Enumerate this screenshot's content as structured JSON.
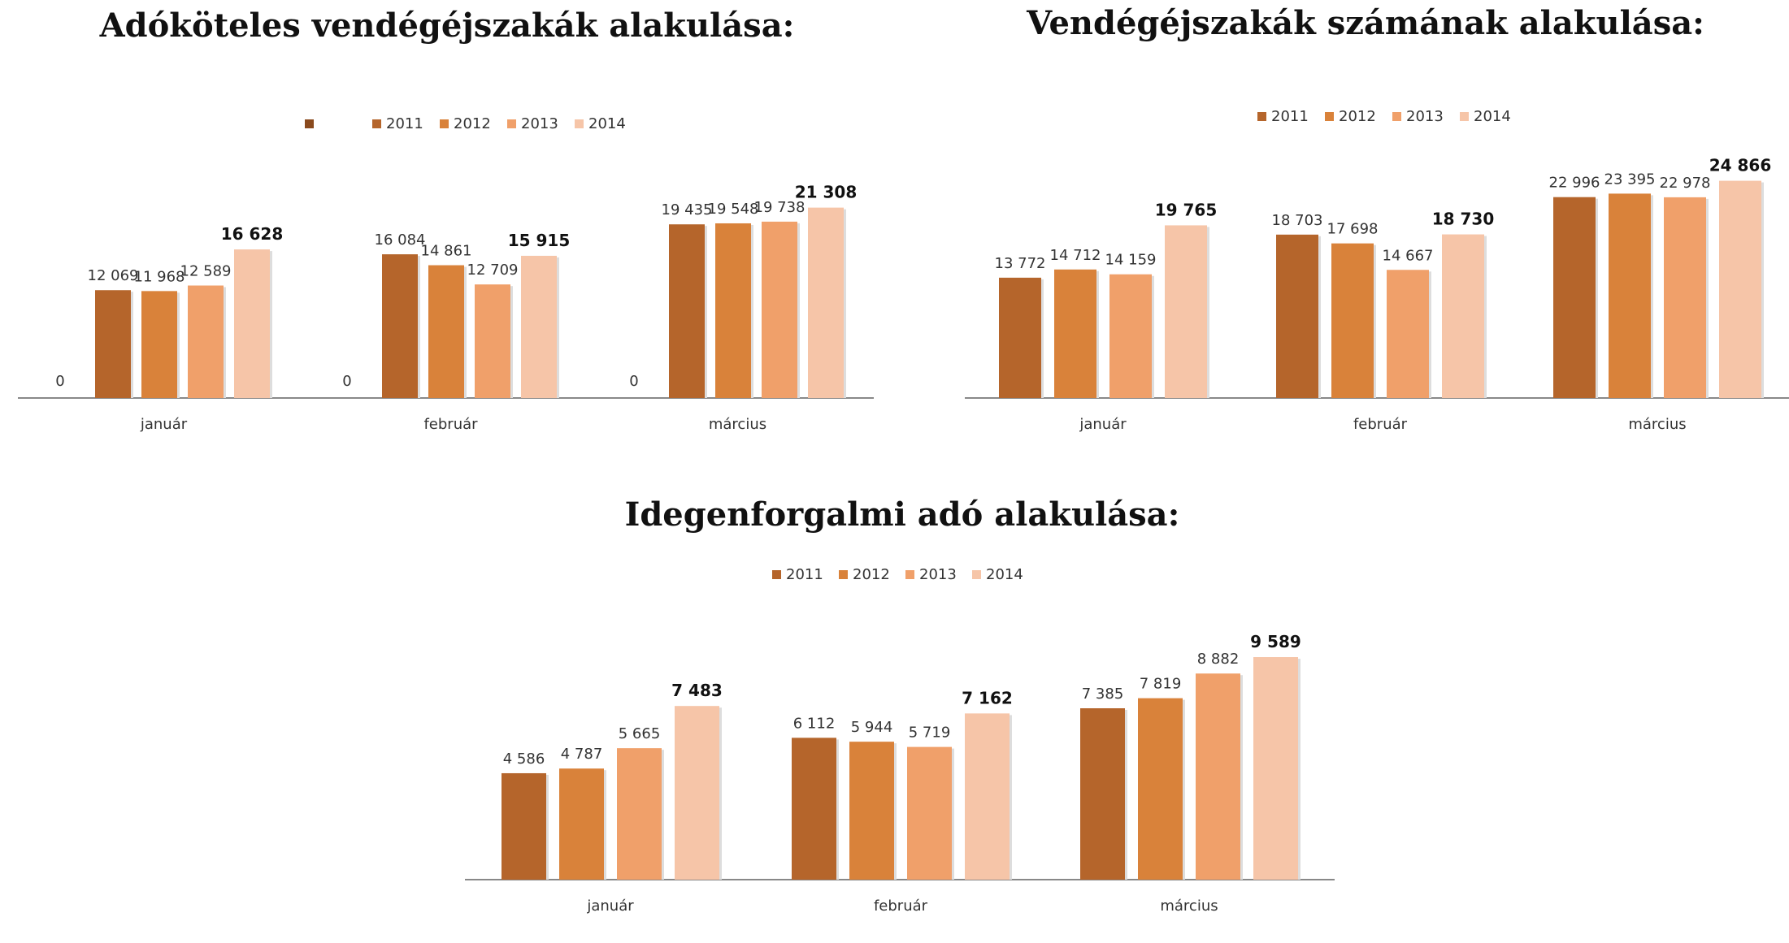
{
  "colors": {
    "2011": "#b5652b",
    "2012": "#d9823a",
    "2013": "#f0a06a",
    "2014": "#f6c5a8",
    "blank": "#8a4a1d",
    "axis": "#888888"
  },
  "chart_data": [
    {
      "type": "bar",
      "title": "Adóköteles vendégéjszakák alakulása:",
      "categories": [
        "január",
        "február",
        "március"
      ],
      "legend": [
        "",
        "2011",
        "2012",
        "2013",
        "2014"
      ],
      "ylim": [
        0,
        25000
      ],
      "series": [
        {
          "name": "",
          "values": [
            0,
            0,
            0
          ],
          "labels": [
            "0",
            "0",
            "0"
          ]
        },
        {
          "name": "2011",
          "values": [
            12069,
            16084,
            19435
          ],
          "labels": [
            "12 069",
            "16 084",
            "19 435"
          ]
        },
        {
          "name": "2012",
          "values": [
            11968,
            14861,
            19548
          ],
          "labels": [
            "11 968",
            "14 861",
            "19 548"
          ]
        },
        {
          "name": "2013",
          "values": [
            12589,
            12709,
            19738
          ],
          "labels": [
            "12 589",
            "12 709",
            "19 738"
          ]
        },
        {
          "name": "2014",
          "values": [
            16628,
            15915,
            21308
          ],
          "labels": [
            "16 628",
            "15 915",
            "21 308"
          ]
        }
      ]
    },
    {
      "type": "bar",
      "title": "Vendégéjszakák számának alakulása:",
      "categories": [
        "január",
        "február",
        "március"
      ],
      "legend": [
        "2011",
        "2012",
        "2013",
        "2014"
      ],
      "ylim": [
        0,
        26500
      ],
      "series": [
        {
          "name": "2011",
          "values": [
            13772,
            18703,
            22996
          ],
          "labels": [
            "13 772",
            "18 703",
            "22 996"
          ]
        },
        {
          "name": "2012",
          "values": [
            14712,
            17698,
            23395
          ],
          "labels": [
            "14 712",
            "17 698",
            "23 395"
          ]
        },
        {
          "name": "2013",
          "values": [
            14159,
            14667,
            22978
          ],
          "labels": [
            "14 159",
            "14 667",
            "22 978"
          ]
        },
        {
          "name": "2014",
          "values": [
            19765,
            18730,
            24866
          ],
          "labels": [
            "19 765",
            "18 730",
            "24 866"
          ]
        }
      ]
    },
    {
      "type": "bar",
      "title": "Idegenforgalmi adó alakulása:",
      "categories": [
        "január",
        "február",
        "március"
      ],
      "legend": [
        "2011",
        "2012",
        "2013",
        "2014"
      ],
      "ylim": [
        0,
        10500
      ],
      "series": [
        {
          "name": "2011",
          "values": [
            4586,
            6112,
            7385
          ],
          "labels": [
            "4 586",
            "6 112",
            "7 385"
          ]
        },
        {
          "name": "2012",
          "values": [
            4787,
            5944,
            7819
          ],
          "labels": [
            "4 787",
            "5 944",
            "7 819"
          ]
        },
        {
          "name": "2013",
          "values": [
            5665,
            5719,
            8882
          ],
          "labels": [
            "5 665",
            "5 719",
            "8 882"
          ]
        },
        {
          "name": "2014",
          "values": [
            7483,
            7162,
            9589
          ],
          "labels": [
            "7 483",
            "7 162",
            "9 589"
          ]
        }
      ]
    }
  ]
}
